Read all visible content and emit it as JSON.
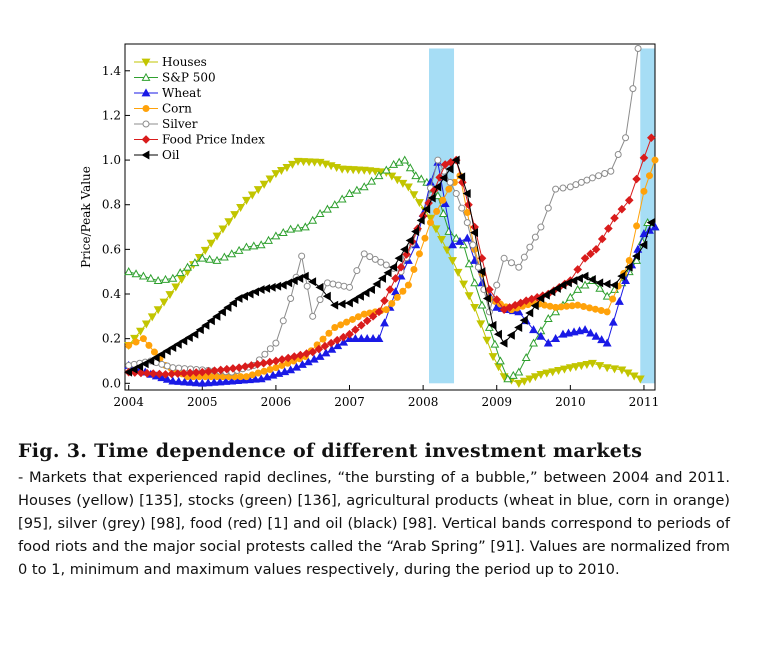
{
  "chart_data": {
    "type": "line",
    "title": "",
    "xlabel": "",
    "ylabel": "Price/Peak Value",
    "xlim": [
      2003.95,
      2011.15
    ],
    "ylim": [
      -0.03,
      1.52
    ],
    "x_ticks": [
      "2004",
      "2005",
      "2006",
      "2007",
      "2008",
      "2009",
      "2010",
      "2011"
    ],
    "y_ticks": [
      "0.0",
      "0.2",
      "0.4",
      "0.6",
      "0.8",
      "1.0",
      "1.2",
      "1.4"
    ],
    "grid": false,
    "legend_position": "top-left",
    "bands": [
      {
        "start": 2008.08,
        "end": 2008.42,
        "color": "#a6ddf5"
      },
      {
        "start": 2010.95,
        "end": 2011.17,
        "color": "#a6ddf5"
      }
    ],
    "series": [
      {
        "name": "Houses",
        "color": "#c2c500",
        "marker": "triangle-down",
        "points": [
          [
            2004.0,
            0.17
          ],
          [
            2004.4,
            0.33
          ],
          [
            2004.8,
            0.5
          ],
          [
            2005.2,
            0.66
          ],
          [
            2005.6,
            0.82
          ],
          [
            2006.0,
            0.94
          ],
          [
            2006.3,
            0.995
          ],
          [
            2006.6,
            0.99
          ],
          [
            2006.9,
            0.96
          ],
          [
            2007.2,
            0.955
          ],
          [
            2007.5,
            0.945
          ],
          [
            2007.8,
            0.88
          ],
          [
            2008.1,
            0.74
          ],
          [
            2008.4,
            0.55
          ],
          [
            2008.7,
            0.34
          ],
          [
            2008.95,
            0.12
          ],
          [
            2009.1,
            0.03
          ],
          [
            2009.3,
            0.0
          ],
          [
            2009.6,
            0.04
          ],
          [
            2010.0,
            0.07
          ],
          [
            2010.3,
            0.09
          ],
          [
            2010.5,
            0.07
          ],
          [
            2010.7,
            0.06
          ],
          [
            2010.95,
            0.02
          ]
        ]
      },
      {
        "name": "S&P 500",
        "color": "#2fa02f",
        "marker": "triangle-up-open",
        "points": [
          [
            2004.0,
            0.5
          ],
          [
            2004.2,
            0.48
          ],
          [
            2004.4,
            0.46
          ],
          [
            2004.6,
            0.47
          ],
          [
            2004.8,
            0.52
          ],
          [
            2005.0,
            0.56
          ],
          [
            2005.2,
            0.55
          ],
          [
            2005.4,
            0.58
          ],
          [
            2005.6,
            0.61
          ],
          [
            2005.8,
            0.62
          ],
          [
            2006.0,
            0.66
          ],
          [
            2006.2,
            0.69
          ],
          [
            2006.4,
            0.7
          ],
          [
            2006.6,
            0.76
          ],
          [
            2006.8,
            0.8
          ],
          [
            2007.0,
            0.85
          ],
          [
            2007.2,
            0.88
          ],
          [
            2007.4,
            0.93
          ],
          [
            2007.6,
            0.98
          ],
          [
            2007.75,
            1.0
          ],
          [
            2007.9,
            0.93
          ],
          [
            2008.05,
            0.9
          ],
          [
            2008.2,
            0.84
          ],
          [
            2008.35,
            0.68
          ],
          [
            2008.55,
            0.62
          ],
          [
            2008.7,
            0.45
          ],
          [
            2008.9,
            0.25
          ],
          [
            2009.05,
            0.1
          ],
          [
            2009.15,
            0.02
          ],
          [
            2009.3,
            0.05
          ],
          [
            2009.5,
            0.18
          ],
          [
            2009.7,
            0.29
          ],
          [
            2009.9,
            0.35
          ],
          [
            2010.1,
            0.42
          ],
          [
            2010.3,
            0.46
          ],
          [
            2010.5,
            0.39
          ],
          [
            2010.7,
            0.45
          ],
          [
            2010.9,
            0.55
          ],
          [
            2011.05,
            0.72
          ],
          [
            2011.15,
            0.7
          ]
        ]
      },
      {
        "name": "Wheat",
        "color": "#1a1ae6",
        "marker": "triangle-up",
        "points": [
          [
            2004.0,
            0.08
          ],
          [
            2004.3,
            0.04
          ],
          [
            2004.6,
            0.01
          ],
          [
            2005.0,
            0.0
          ],
          [
            2005.4,
            0.01
          ],
          [
            2005.8,
            0.02
          ],
          [
            2006.2,
            0.06
          ],
          [
            2006.6,
            0.12
          ],
          [
            2007.0,
            0.2
          ],
          [
            2007.4,
            0.2
          ],
          [
            2007.7,
            0.48
          ],
          [
            2007.9,
            0.62
          ],
          [
            2008.1,
            0.9
          ],
          [
            2008.2,
            0.99
          ],
          [
            2008.4,
            0.62
          ],
          [
            2008.6,
            0.65
          ],
          [
            2008.8,
            0.45
          ],
          [
            2009.0,
            0.34
          ],
          [
            2009.3,
            0.32
          ],
          [
            2009.5,
            0.24
          ],
          [
            2009.7,
            0.18
          ],
          [
            2009.9,
            0.22
          ],
          [
            2010.2,
            0.24
          ],
          [
            2010.5,
            0.18
          ],
          [
            2010.75,
            0.46
          ],
          [
            2011.0,
            0.67
          ],
          [
            2011.15,
            0.7
          ]
        ]
      },
      {
        "name": "Corn",
        "color": "#ffa20a",
        "marker": "circle",
        "points": [
          [
            2004.0,
            0.17
          ],
          [
            2004.2,
            0.2
          ],
          [
            2004.5,
            0.08
          ],
          [
            2004.8,
            0.03
          ],
          [
            2005.2,
            0.03
          ],
          [
            2005.6,
            0.03
          ],
          [
            2006.0,
            0.07
          ],
          [
            2006.4,
            0.12
          ],
          [
            2006.8,
            0.25
          ],
          [
            2007.2,
            0.31
          ],
          [
            2007.5,
            0.33
          ],
          [
            2007.8,
            0.44
          ],
          [
            2008.1,
            0.72
          ],
          [
            2008.35,
            0.87
          ],
          [
            2008.5,
            0.93
          ],
          [
            2008.7,
            0.6
          ],
          [
            2008.9,
            0.38
          ],
          [
            2009.2,
            0.33
          ],
          [
            2009.5,
            0.36
          ],
          [
            2009.8,
            0.34
          ],
          [
            2010.1,
            0.35
          ],
          [
            2010.5,
            0.32
          ],
          [
            2010.8,
            0.55
          ],
          [
            2011.0,
            0.86
          ],
          [
            2011.15,
            1.0
          ]
        ]
      },
      {
        "name": "Silver",
        "color": "#8c8c8c",
        "marker": "circle-open",
        "points": [
          [
            2004.0,
            0.08
          ],
          [
            2004.3,
            0.1
          ],
          [
            2004.6,
            0.07
          ],
          [
            2005.0,
            0.06
          ],
          [
            2005.4,
            0.05
          ],
          [
            2005.7,
            0.08
          ],
          [
            2006.0,
            0.18
          ],
          [
            2006.2,
            0.38
          ],
          [
            2006.35,
            0.57
          ],
          [
            2006.5,
            0.3
          ],
          [
            2006.7,
            0.45
          ],
          [
            2007.0,
            0.43
          ],
          [
            2007.2,
            0.58
          ],
          [
            2007.5,
            0.53
          ],
          [
            2007.7,
            0.5
          ],
          [
            2008.0,
            0.75
          ],
          [
            2008.2,
            1.0
          ],
          [
            2008.45,
            0.85
          ],
          [
            2008.6,
            0.72
          ],
          [
            2008.9,
            0.32
          ],
          [
            2009.1,
            0.56
          ],
          [
            2009.3,
            0.52
          ],
          [
            2009.6,
            0.7
          ],
          [
            2009.8,
            0.87
          ],
          [
            2010.0,
            0.88
          ],
          [
            2010.3,
            0.92
          ],
          [
            2010.55,
            0.95
          ],
          [
            2010.75,
            1.1
          ],
          [
            2010.85,
            1.32
          ],
          [
            2010.92,
            1.5
          ]
        ]
      },
      {
        "name": "Food Price Index",
        "color": "#d91c1c",
        "marker": "diamond",
        "points": [
          [
            2004.0,
            0.05
          ],
          [
            2004.5,
            0.04
          ],
          [
            2005.0,
            0.05
          ],
          [
            2005.5,
            0.07
          ],
          [
            2006.0,
            0.1
          ],
          [
            2006.5,
            0.14
          ],
          [
            2007.0,
            0.22
          ],
          [
            2007.4,
            0.32
          ],
          [
            2007.7,
            0.52
          ],
          [
            2008.0,
            0.75
          ],
          [
            2008.3,
            0.98
          ],
          [
            2008.45,
            1.0
          ],
          [
            2008.7,
            0.7
          ],
          [
            2008.9,
            0.42
          ],
          [
            2009.1,
            0.33
          ],
          [
            2009.4,
            0.37
          ],
          [
            2009.7,
            0.4
          ],
          [
            2010.0,
            0.46
          ],
          [
            2010.2,
            0.56
          ],
          [
            2010.35,
            0.6
          ],
          [
            2010.6,
            0.74
          ],
          [
            2010.8,
            0.82
          ],
          [
            2011.0,
            1.01
          ],
          [
            2011.1,
            1.1
          ]
        ]
      },
      {
        "name": "Oil",
        "color": "#000000",
        "marker": "triangle-left",
        "points": [
          [
            2004.0,
            0.05
          ],
          [
            2004.3,
            0.1
          ],
          [
            2004.6,
            0.16
          ],
          [
            2004.9,
            0.22
          ],
          [
            2005.2,
            0.3
          ],
          [
            2005.5,
            0.38
          ],
          [
            2005.8,
            0.42
          ],
          [
            2006.1,
            0.44
          ],
          [
            2006.4,
            0.48
          ],
          [
            2006.6,
            0.43
          ],
          [
            2006.8,
            0.35
          ],
          [
            2007.0,
            0.36
          ],
          [
            2007.3,
            0.42
          ],
          [
            2007.6,
            0.52
          ],
          [
            2007.9,
            0.68
          ],
          [
            2008.2,
            0.88
          ],
          [
            2008.45,
            1.0
          ],
          [
            2008.6,
            0.85
          ],
          [
            2008.8,
            0.5
          ],
          [
            2008.95,
            0.26
          ],
          [
            2009.1,
            0.18
          ],
          [
            2009.3,
            0.25
          ],
          [
            2009.6,
            0.38
          ],
          [
            2009.9,
            0.44
          ],
          [
            2010.2,
            0.48
          ],
          [
            2010.4,
            0.45
          ],
          [
            2010.6,
            0.44
          ],
          [
            2010.8,
            0.52
          ],
          [
            2011.0,
            0.62
          ],
          [
            2011.1,
            0.72
          ]
        ]
      }
    ]
  },
  "caption": {
    "title": "Fig. 3.   Time dependence of different investment markets",
    "body": "- Markets that experienced rapid declines, “the bursting of a bubble,” between 2004 and 2011. Houses (yellow) [135], stocks (green) [136], agricultural products (wheat in blue, corn in orange) [95], silver (grey) [98], food (red) [1] and oil (black) [98]. Vertical bands correspond to periods of food riots and the major social protests called the “Arab Spring” [91]. Values are normalized from 0 to 1, minimum and maximum values respectively, during the period up to 2010."
  }
}
